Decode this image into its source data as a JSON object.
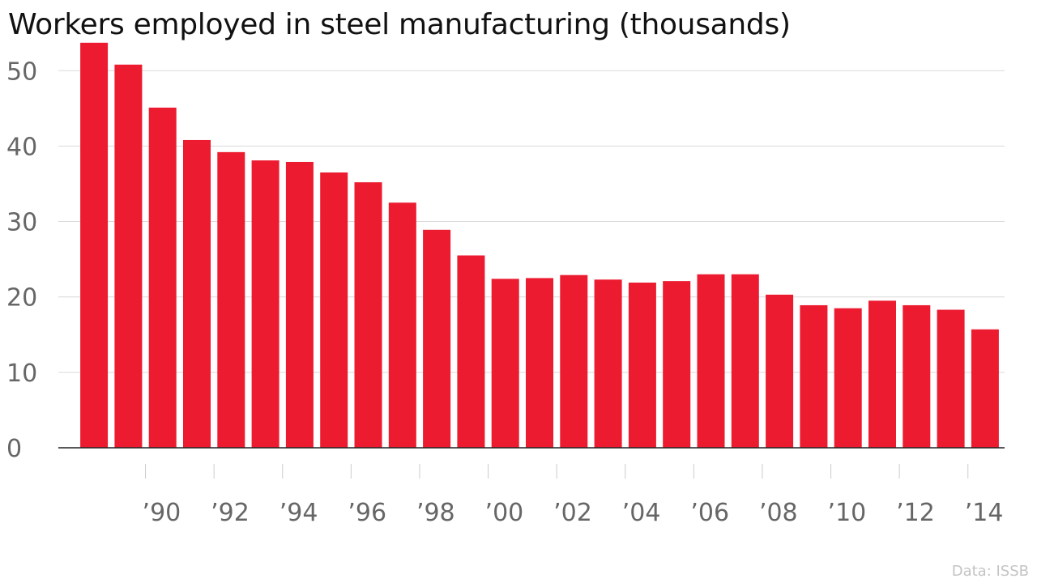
{
  "chart_data": {
    "type": "bar",
    "title": "Workers employed in steel manufacturing (thousands)",
    "source": "Data: ISSB",
    "color": "#ec1b30",
    "categories": [
      "1988",
      "1989",
      "1990",
      "1991",
      "1992",
      "1993",
      "1994",
      "1995",
      "1996",
      "1997",
      "1998",
      "1999",
      "2000",
      "2001",
      "2002",
      "2003",
      "2004",
      "2005",
      "2006",
      "2007",
      "2008",
      "2009",
      "2010",
      "2011",
      "2012",
      "2013",
      "2014"
    ],
    "values": [
      53.7,
      50.8,
      45.1,
      40.8,
      39.2,
      38.1,
      37.9,
      36.5,
      35.2,
      32.5,
      28.9,
      25.5,
      22.4,
      22.5,
      22.9,
      22.3,
      21.9,
      22.1,
      23.0,
      23.0,
      20.3,
      18.9,
      18.5,
      19.5,
      18.9,
      18.3,
      15.7
    ],
    "x_tick_labels": [
      "’90",
      "’92",
      "’94",
      "’96",
      "’98",
      "’00",
      "’02",
      "’04",
      "’06",
      "’08",
      "’10",
      "’12",
      "’14"
    ],
    "y_ticks": [
      0,
      10,
      20,
      30,
      40,
      50
    ],
    "ylim": [
      0,
      54
    ],
    "grid": true,
    "xlabel": "",
    "ylabel": ""
  }
}
